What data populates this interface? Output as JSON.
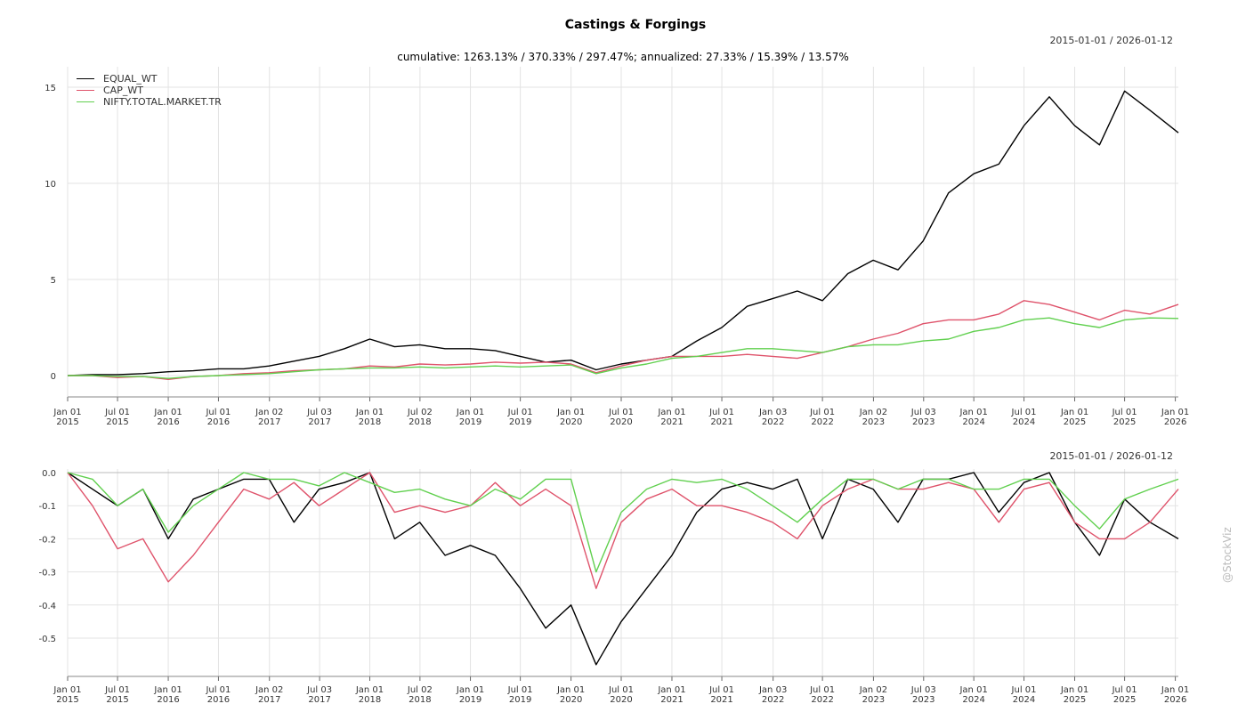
{
  "title": "Castings & Forgings",
  "subtitle": "cumulative: 1263.13% / 370.33% / 297.47%; annualized: 27.33% / 15.39% / 13.57%",
  "date_range_top": "2015-01-01 / 2026-01-12",
  "date_range_bottom": "2015-01-01 / 2026-01-12",
  "watermark": "@StockViz",
  "chart_data": [
    {
      "type": "line",
      "panel": "cumulative returns",
      "legend_position": "top-left",
      "grid": true,
      "xlim": [
        "2015-01-01",
        "2026-01-12"
      ],
      "ylim": [
        -1.06,
        16.06
      ],
      "yticks": [
        "0",
        "5",
        "10",
        "15"
      ],
      "xticks": [
        {
          "date": "2015-01-01",
          "label": [
            "Jan 01",
            "2015"
          ]
        },
        {
          "date": "2015-07-01",
          "label": [
            "Jul 01",
            "2015"
          ]
        },
        {
          "date": "2016-01-01",
          "label": [
            "Jan 01",
            "2016"
          ]
        },
        {
          "date": "2016-07-01",
          "label": [
            "Jul 01",
            "2016"
          ]
        },
        {
          "date": "2017-01-02",
          "label": [
            "Jan 02",
            "2017"
          ]
        },
        {
          "date": "2017-07-03",
          "label": [
            "Jul 03",
            "2017"
          ]
        },
        {
          "date": "2018-01-01",
          "label": [
            "Jan 01",
            "2018"
          ]
        },
        {
          "date": "2018-07-02",
          "label": [
            "Jul 02",
            "2018"
          ]
        },
        {
          "date": "2019-01-01",
          "label": [
            "Jan 01",
            "2019"
          ]
        },
        {
          "date": "2019-07-01",
          "label": [
            "Jul 01",
            "2019"
          ]
        },
        {
          "date": "2020-01-01",
          "label": [
            "Jan 01",
            "2020"
          ]
        },
        {
          "date": "2020-07-01",
          "label": [
            "Jul 01",
            "2020"
          ]
        },
        {
          "date": "2021-01-01",
          "label": [
            "Jan 01",
            "2021"
          ]
        },
        {
          "date": "2021-07-01",
          "label": [
            "Jul 01",
            "2021"
          ]
        },
        {
          "date": "2022-01-03",
          "label": [
            "Jan 03",
            "2022"
          ]
        },
        {
          "date": "2022-07-01",
          "label": [
            "Jul 01",
            "2022"
          ]
        },
        {
          "date": "2023-01-02",
          "label": [
            "Jan 02",
            "2023"
          ]
        },
        {
          "date": "2023-07-03",
          "label": [
            "Jul 03",
            "2023"
          ]
        },
        {
          "date": "2024-01-01",
          "label": [
            "Jan 01",
            "2024"
          ]
        },
        {
          "date": "2024-07-01",
          "label": [
            "Jul 01",
            "2024"
          ]
        },
        {
          "date": "2025-01-01",
          "label": [
            "Jan 01",
            "2025"
          ]
        },
        {
          "date": "2025-07-01",
          "label": [
            "Jul 01",
            "2025"
          ]
        },
        {
          "date": "2026-01-01",
          "label": [
            "Jan 01",
            "2026"
          ]
        }
      ],
      "x": [
        "2015-01-01",
        "2015-04-01",
        "2015-07-01",
        "2015-10-01",
        "2016-01-01",
        "2016-04-01",
        "2016-07-01",
        "2016-10-01",
        "2017-01-01",
        "2017-04-01",
        "2017-07-01",
        "2017-10-01",
        "2018-01-01",
        "2018-04-01",
        "2018-07-01",
        "2018-10-01",
        "2019-01-01",
        "2019-04-01",
        "2019-07-01",
        "2019-10-01",
        "2020-01-01",
        "2020-04-01",
        "2020-07-01",
        "2020-10-01",
        "2021-01-01",
        "2021-04-01",
        "2021-07-01",
        "2021-10-01",
        "2022-01-01",
        "2022-04-01",
        "2022-07-01",
        "2022-10-01",
        "2023-01-01",
        "2023-04-01",
        "2023-07-01",
        "2023-10-01",
        "2024-01-01",
        "2024-04-01",
        "2024-07-01",
        "2024-10-01",
        "2025-01-01",
        "2025-04-01",
        "2025-07-01",
        "2025-10-01",
        "2026-01-12"
      ],
      "series": [
        {
          "name": "EQUAL_WT",
          "color": "#000000",
          "values": [
            0,
            0.05,
            0.05,
            0.1,
            0.2,
            0.25,
            0.35,
            0.35,
            0.5,
            0.75,
            1.0,
            1.4,
            1.9,
            1.5,
            1.6,
            1.4,
            1.4,
            1.3,
            1.0,
            0.7,
            0.8,
            0.3,
            0.6,
            0.8,
            1.0,
            1.8,
            2.5,
            3.6,
            4.0,
            4.4,
            3.9,
            5.3,
            6.0,
            5.5,
            7.0,
            9.5,
            10.5,
            11.0,
            13.0,
            14.5,
            13.0,
            12.0,
            14.8,
            13.8,
            12.63
          ]
        },
        {
          "name": "CAP_WT",
          "color": "#df536b",
          "values": [
            0,
            0,
            -0.1,
            -0.05,
            -0.2,
            -0.05,
            0.0,
            0.1,
            0.15,
            0.25,
            0.3,
            0.35,
            0.5,
            0.45,
            0.6,
            0.55,
            0.6,
            0.7,
            0.65,
            0.7,
            0.6,
            0.15,
            0.5,
            0.8,
            1.0,
            1.0,
            1.0,
            1.1,
            1.0,
            0.9,
            1.2,
            1.5,
            1.9,
            2.2,
            2.7,
            2.9,
            2.9,
            3.2,
            3.9,
            3.7,
            3.3,
            2.9,
            3.4,
            3.2,
            3.7
          ]
        },
        {
          "name": "NIFTY.TOTAL.MARKET.TR",
          "color": "#61d04f",
          "values": [
            0,
            0,
            -0.05,
            -0.05,
            -0.15,
            -0.05,
            0.0,
            0.05,
            0.1,
            0.2,
            0.3,
            0.35,
            0.4,
            0.4,
            0.45,
            0.4,
            0.45,
            0.5,
            0.45,
            0.5,
            0.55,
            0.1,
            0.4,
            0.6,
            0.9,
            1.0,
            1.2,
            1.4,
            1.4,
            1.3,
            1.2,
            1.5,
            1.6,
            1.6,
            1.8,
            1.9,
            2.3,
            2.5,
            2.9,
            3.0,
            2.7,
            2.5,
            2.9,
            3.0,
            2.97
          ]
        }
      ]
    },
    {
      "type": "line",
      "panel": "drawdown",
      "grid": true,
      "xlim": [
        "2015-01-01",
        "2026-01-12"
      ],
      "ylim": [
        -0.615,
        0
      ],
      "yticks": [
        "0.0",
        "-0.1",
        "-0.2",
        "-0.3",
        "-0.4",
        "-0.5"
      ],
      "series": [
        {
          "name": "EQUAL_WT",
          "color": "#000000",
          "values": [
            0,
            -0.05,
            -0.1,
            -0.05,
            -0.2,
            -0.08,
            -0.05,
            -0.02,
            -0.02,
            -0.15,
            -0.05,
            -0.03,
            0,
            -0.2,
            -0.15,
            -0.25,
            -0.22,
            -0.25,
            -0.35,
            -0.47,
            -0.4,
            -0.58,
            -0.45,
            -0.35,
            -0.25,
            -0.12,
            -0.05,
            -0.03,
            -0.05,
            -0.02,
            -0.2,
            -0.02,
            -0.05,
            -0.15,
            -0.02,
            -0.02,
            0,
            -0.12,
            -0.03,
            0,
            -0.15,
            -0.25,
            -0.08,
            -0.15,
            -0.2
          ]
        },
        {
          "name": "CAP_WT",
          "color": "#df536b",
          "values": [
            0,
            -0.1,
            -0.23,
            -0.2,
            -0.33,
            -0.25,
            -0.15,
            -0.05,
            -0.08,
            -0.03,
            -0.1,
            -0.05,
            0,
            -0.12,
            -0.1,
            -0.12,
            -0.1,
            -0.03,
            -0.1,
            -0.05,
            -0.1,
            -0.35,
            -0.15,
            -0.08,
            -0.05,
            -0.1,
            -0.1,
            -0.12,
            -0.15,
            -0.2,
            -0.1,
            -0.05,
            -0.02,
            -0.05,
            -0.05,
            -0.03,
            -0.05,
            -0.15,
            -0.05,
            -0.03,
            -0.15,
            -0.2,
            -0.2,
            -0.15,
            -0.05
          ]
        },
        {
          "name": "NIFTY.TOTAL.MARKET.TR",
          "color": "#61d04f",
          "values": [
            0,
            -0.02,
            -0.1,
            -0.05,
            -0.18,
            -0.1,
            -0.05,
            0,
            -0.02,
            -0.02,
            -0.04,
            0,
            -0.03,
            -0.06,
            -0.05,
            -0.08,
            -0.1,
            -0.05,
            -0.08,
            -0.02,
            -0.02,
            -0.3,
            -0.12,
            -0.05,
            -0.02,
            -0.03,
            -0.02,
            -0.05,
            -0.1,
            -0.15,
            -0.08,
            -0.02,
            -0.02,
            -0.05,
            -0.02,
            -0.02,
            -0.05,
            -0.05,
            -0.02,
            -0.02,
            -0.1,
            -0.17,
            -0.08,
            -0.05,
            -0.02
          ]
        }
      ]
    }
  ]
}
